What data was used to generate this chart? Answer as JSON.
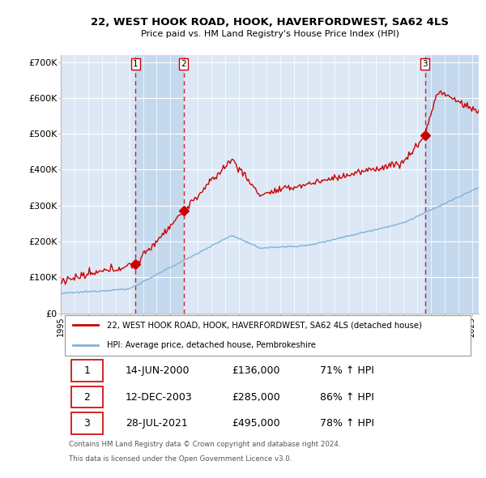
{
  "title": "22, WEST HOOK ROAD, HOOK, HAVERFORDWEST, SA62 4LS",
  "subtitle": "Price paid vs. HM Land Registry's House Price Index (HPI)",
  "ylabel_ticks": [
    "£0",
    "£100K",
    "£200K",
    "£300K",
    "£400K",
    "£500K",
    "£600K",
    "£700K"
  ],
  "ytick_vals": [
    0,
    100000,
    200000,
    300000,
    400000,
    500000,
    600000,
    700000
  ],
  "ylim": [
    0,
    720000
  ],
  "xlim_start": 1995.0,
  "xlim_end": 2025.5,
  "plot_bg_color": "#dce8f5",
  "grid_color": "#ffffff",
  "red_color": "#cc0000",
  "blue_color": "#7fb3d9",
  "shade_color": "#c5d9ee",
  "transaction_dates": [
    2000.45,
    2003.96,
    2021.57
  ],
  "transaction_labels": [
    "1",
    "2",
    "3"
  ],
  "transaction_prices": [
    136000,
    285000,
    495000
  ],
  "legend_line1": "22, WEST HOOK ROAD, HOOK, HAVERFORDWEST, SA62 4LS (detached house)",
  "legend_line2": "HPI: Average price, detached house, Pembrokeshire",
  "table_data": [
    [
      "1",
      "14-JUN-2000",
      "£136,000",
      "71% ↑ HPI"
    ],
    [
      "2",
      "12-DEC-2003",
      "£285,000",
      "86% ↑ HPI"
    ],
    [
      "3",
      "28-JUL-2021",
      "£495,000",
      "78% ↑ HPI"
    ]
  ],
  "footnote1": "Contains HM Land Registry data © Crown copyright and database right 2024.",
  "footnote2": "This data is licensed under the Open Government Licence v3.0."
}
